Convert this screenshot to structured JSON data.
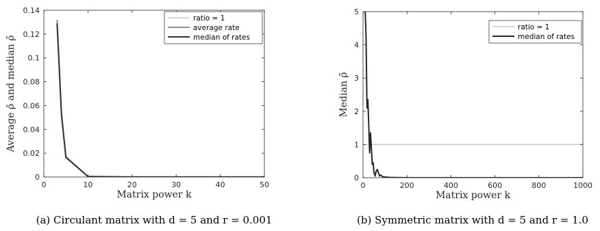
{
  "chart_data": [
    {
      "type": "line",
      "caption": "(a) Circulant matrix with d = 5 and r = 0.001",
      "xlabel": "Matrix power k",
      "ylabel": "Average ρ̂ and median ρ̃",
      "xlim": [
        0,
        50
      ],
      "ylim": [
        0,
        0.14
      ],
      "xticks": [
        0,
        10,
        20,
        30,
        40,
        50
      ],
      "yticks": [
        0,
        0.02,
        0.04,
        0.06,
        0.08,
        0.1,
        0.12,
        0.14
      ],
      "ytick_labels": [
        "0",
        "0.02",
        "0.04",
        "0.06",
        "0.08",
        "0.1",
        "0.12",
        "0.14"
      ],
      "grid": false,
      "legend": "top-right",
      "series": [
        {
          "name": "ratio = 1",
          "color": "#c8c8c8",
          "width": 1.5,
          "x": [],
          "y": []
        },
        {
          "name": "average rate",
          "color": "#8c8c8c",
          "width": 2,
          "x": [
            3,
            4,
            5,
            10,
            15,
            20,
            30,
            40,
            50
          ],
          "y": [
            0.132,
            0.054,
            0.017,
            0.0005,
            0.0002,
            0.0001,
            0.0001,
            0.0001,
            0.0001
          ]
        },
        {
          "name": "median of rates",
          "color": "#333333",
          "width": 2,
          "x": [
            3,
            4,
            5,
            10,
            15,
            20,
            30,
            40,
            50
          ],
          "y": [
            0.129,
            0.052,
            0.0165,
            0.0004,
            0.0002,
            0.0001,
            0.0001,
            0.0001,
            0.0001
          ]
        }
      ]
    },
    {
      "type": "line",
      "caption": "(b) Symmetric matrix with d = 5 and r = 1.0",
      "xlabel": "Matrix power k",
      "ylabel": "Median ρ̃",
      "xlim": [
        0,
        1000
      ],
      "ylim": [
        0,
        5
      ],
      "xticks": [
        0,
        200,
        400,
        600,
        800,
        1000
      ],
      "yticks": [
        0,
        1,
        2,
        3,
        4,
        5
      ],
      "ytick_labels": [
        "0",
        "1",
        "2",
        "3",
        "4",
        "5"
      ],
      "grid": false,
      "legend": "top-right",
      "series": [
        {
          "name": "ratio = 1",
          "color": "#c8c8c8",
          "width": 1.5,
          "x": [
            0,
            1000
          ],
          "y": [
            1,
            1
          ]
        },
        {
          "name": "median of rates",
          "color": "#262626",
          "width": 2,
          "x": [
            10,
            14,
            18,
            22,
            26,
            30,
            34,
            38,
            42,
            46,
            50,
            55,
            60,
            65,
            70,
            75,
            80,
            90,
            100,
            120,
            150,
            200,
            300,
            400,
            600,
            800,
            1000
          ],
          "y": [
            5.0,
            4.2,
            2.1,
            2.35,
            1.6,
            0.75,
            1.35,
            0.9,
            0.4,
            0.45,
            0.15,
            0.05,
            0.2,
            0.25,
            0.15,
            0.05,
            0.08,
            0.03,
            0.02,
            0.01,
            0.005,
            0.0,
            0.0,
            0.0,
            0.0,
            0.0,
            0.0
          ]
        }
      ]
    }
  ]
}
